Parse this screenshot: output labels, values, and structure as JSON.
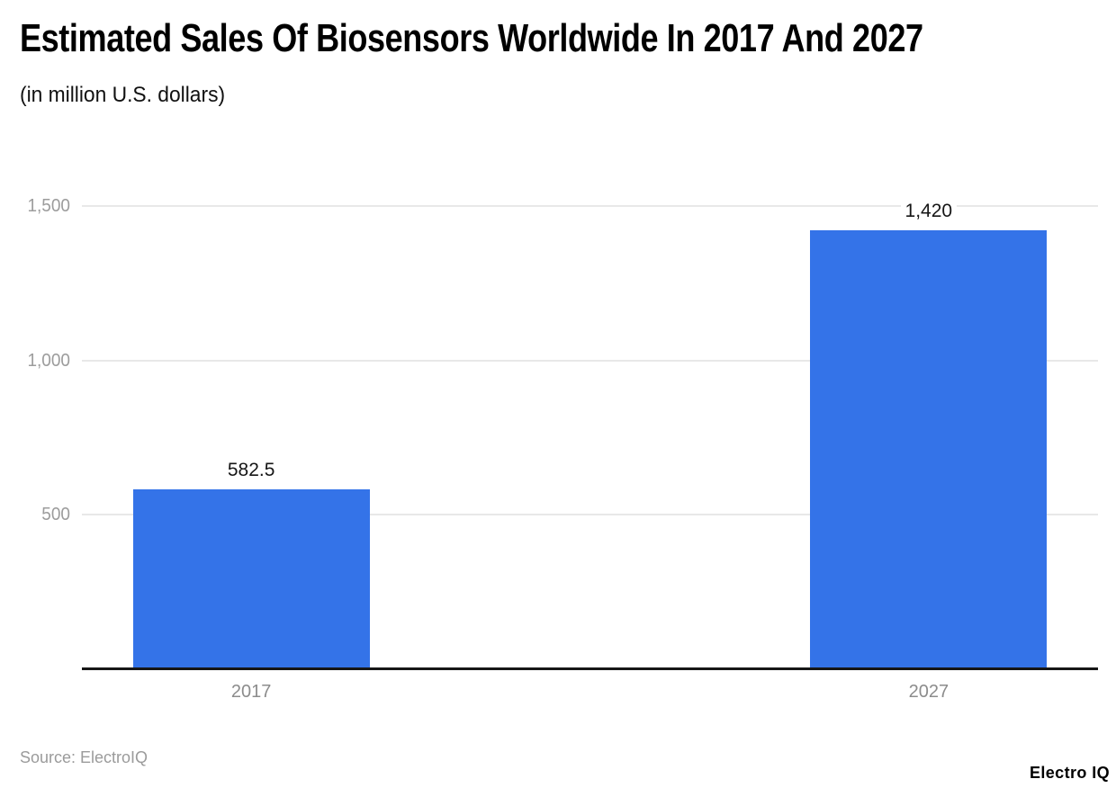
{
  "header": {
    "title": "Estimated Sales Of Biosensors Worldwide In 2017 And 2027",
    "subtitle": "(in million U.S. dollars)"
  },
  "footer": {
    "source": "Source: ElectroIQ",
    "logo": "Electro IQ"
  },
  "colors": {
    "bar": "#3473e8",
    "grid": "#e8e8e8",
    "axis": "#161616",
    "y_tick_label": "#9c9c9c",
    "x_tick_label": "#8c8c8c",
    "value_label": "#161616",
    "title": "#000000",
    "source": "#9b9b9b"
  },
  "chart_data": {
    "type": "bar",
    "title": "Estimated Sales Of Biosensors Worldwide In 2017 And 2027",
    "subtitle": "(in million U.S. dollars)",
    "categories": [
      "2017",
      "2027"
    ],
    "values": [
      582.5,
      1420
    ],
    "value_labels": [
      "582.5",
      "1,420"
    ],
    "xlabel": "",
    "ylabel": "",
    "ylim": [
      0,
      1500
    ],
    "yticks": [
      500,
      1000,
      1500
    ],
    "ytick_labels": [
      "500",
      "1,000",
      "1,500"
    ],
    "grid": true,
    "legend": "none"
  }
}
